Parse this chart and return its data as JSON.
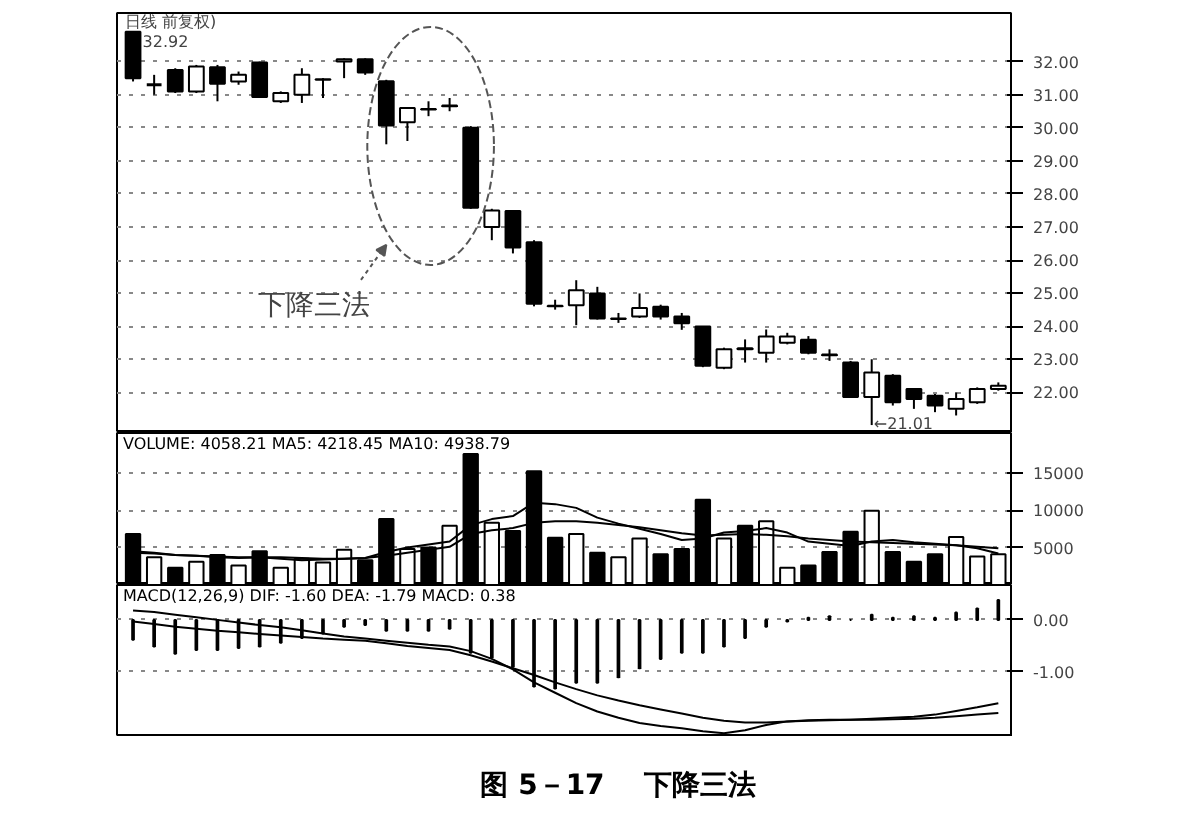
{
  "chart_data": [
    {
      "type": "candlestick",
      "categories": [
        null,
        null,
        null,
        null,
        null,
        null,
        null,
        null,
        null,
        null,
        null,
        null,
        null,
        null,
        null,
        null,
        null,
        null,
        null,
        null,
        null,
        null,
        null,
        null,
        null,
        null,
        null,
        null,
        null,
        null,
        null,
        null,
        null,
        null,
        null,
        null,
        null,
        null,
        null,
        null,
        null,
        null
      ],
      "ohlc": [
        [
          32.9,
          32.92,
          31.4,
          31.5
        ],
        [
          31.3,
          31.6,
          31.0,
          31.3
        ],
        [
          31.75,
          31.8,
          31.05,
          31.1
        ],
        [
          31.1,
          31.9,
          31.05,
          31.85
        ],
        [
          31.83,
          31.9,
          30.8,
          31.33
        ],
        [
          31.4,
          31.7,
          31.3,
          31.6
        ],
        [
          31.97,
          32.0,
          30.9,
          30.93
        ],
        [
          30.8,
          31.1,
          30.75,
          31.05
        ],
        [
          31.0,
          31.8,
          30.75,
          31.6
        ],
        [
          31.45,
          31.5,
          30.9,
          31.47
        ],
        [
          32.0,
          32.1,
          31.5,
          32.07
        ],
        [
          32.07,
          32.1,
          31.6,
          31.67
        ],
        [
          31.41,
          31.45,
          29.5,
          30.07
        ],
        [
          30.17,
          30.6,
          29.6,
          30.6
        ],
        [
          30.55,
          30.8,
          30.35,
          30.57
        ],
        [
          30.65,
          30.9,
          30.5,
          30.67
        ],
        [
          30.0,
          30.05,
          27.55,
          27.58
        ],
        [
          27.0,
          27.55,
          26.6,
          27.5
        ],
        [
          27.48,
          27.5,
          26.2,
          26.38
        ],
        [
          26.54,
          26.6,
          24.6,
          24.68
        ],
        [
          24.6,
          24.8,
          24.5,
          24.62
        ],
        [
          24.63,
          25.39,
          24.03,
          25.09
        ],
        [
          24.99,
          25.19,
          24.2,
          24.23
        ],
        [
          24.22,
          24.4,
          24.1,
          24.23
        ],
        [
          24.29,
          24.99,
          24.25,
          24.55
        ],
        [
          24.59,
          24.65,
          24.2,
          24.29
        ],
        [
          24.29,
          24.4,
          23.89,
          24.09
        ],
        [
          23.99,
          24.0,
          22.76,
          22.8
        ],
        [
          22.74,
          23.35,
          22.7,
          23.3
        ],
        [
          23.3,
          23.6,
          22.9,
          23.33
        ],
        [
          23.2,
          23.9,
          22.9,
          23.69
        ],
        [
          23.5,
          23.8,
          23.45,
          23.69
        ],
        [
          23.59,
          23.7,
          23.15,
          23.2
        ],
        [
          23.12,
          23.3,
          22.95,
          23.14
        ],
        [
          22.9,
          22.95,
          21.85,
          21.86
        ],
        [
          21.86,
          23.0,
          21.01,
          22.6
        ],
        [
          22.5,
          22.55,
          21.6,
          21.7
        ],
        [
          22.1,
          22.1,
          21.5,
          21.8
        ],
        [
          21.9,
          21.95,
          21.4,
          21.6
        ],
        [
          21.5,
          22.0,
          21.3,
          21.8
        ],
        [
          21.7,
          22.15,
          21.65,
          22.1
        ],
        [
          22.1,
          22.3,
          22.05,
          22.2
        ]
      ],
      "color": "#000000",
      "ylim": [
        20.77,
        33.47
      ],
      "yticks": [
        {
          "value": 22,
          "label": "22.00"
        },
        {
          "value": 23,
          "label": "23.00"
        },
        {
          "value": 24,
          "label": "24.00"
        },
        {
          "value": 25,
          "label": "25.00"
        },
        {
          "value": 26,
          "label": "26.00"
        },
        {
          "value": 27,
          "label": "27.00"
        },
        {
          "value": 28,
          "label": "28.00"
        },
        {
          "value": 29,
          "label": "29.00"
        },
        {
          "value": 30,
          "label": "30.00"
        },
        {
          "value": 31,
          "label": "31.00"
        },
        {
          "value": 32,
          "label": "32.00"
        }
      ],
      "grid": "y",
      "tick_labels": "y",
      "annotations": [
        "日线 前复权)",
        "32.92",
        "下降三法",
        "←21.01"
      ]
    },
    {
      "type": "bar",
      "title": "VOLUME: 4058.21 MA5: 4218.45 MA10: 4938.79",
      "categories": [
        null,
        null,
        null,
        null,
        null,
        null,
        null,
        null,
        null,
        null,
        null,
        null,
        null,
        null,
        null,
        null,
        null,
        null,
        null,
        null,
        null,
        null,
        null,
        null,
        null,
        null,
        null,
        null,
        null,
        null,
        null,
        null,
        null,
        null,
        null,
        null,
        null,
        null,
        null,
        null,
        null,
        null
      ],
      "series": [
        {
          "type": "bar",
          "color": "#000000",
          "values": [
            6800,
            3700,
            2300,
            3100,
            4000,
            2600,
            4500,
            2300,
            3500,
            3000,
            4700,
            3300,
            8800,
            4800,
            5000,
            7900,
            17500,
            8300,
            7200,
            15200,
            6300,
            6800,
            4300,
            3700,
            6200,
            4100,
            4800,
            11400,
            6200,
            7900,
            8500,
            2300,
            2600,
            4400,
            7100,
            9900,
            4400,
            3100,
            4100,
            6400,
            3800,
            4100
          ],
          "colors": [
            "#000000",
            "#ffffff",
            "#000000",
            "#ffffff",
            "#000000",
            "#ffffff",
            "#000000",
            "#ffffff",
            "#ffffff",
            "#ffffff",
            "#ffffff",
            "#000000",
            "#000000",
            "#ffffff",
            "#000000",
            "#ffffff",
            "#000000",
            "#ffffff",
            "#000000",
            "#000000",
            "#000000",
            "#ffffff",
            "#000000",
            "#ffffff",
            "#ffffff",
            "#000000",
            "#000000",
            "#000000",
            "#ffffff",
            "#000000",
            "#ffffff",
            "#ffffff",
            "#000000",
            "#000000",
            "#000000",
            "#ffffff",
            "#000000",
            "#000000",
            "#000000",
            "#ffffff",
            "#ffffff",
            "#ffffff"
          ]
        },
        {
          "type": "line",
          "color": "#000000",
          "values": [
            4500,
            4300,
            4000,
            3900,
            3700,
            3600,
            3700,
            3500,
            3300,
            3400,
            3500,
            3600,
            4400,
            5000,
            5400,
            5800,
            8000,
            8800,
            9200,
            11000,
            10800,
            10300,
            9000,
            8200,
            7500,
            6800,
            6000,
            6200,
            7000,
            7200,
            7600,
            7000,
            5800,
            5500,
            5200,
            5800,
            6000,
            5700,
            5500,
            5300,
            4900,
            4200
          ]
        },
        {
          "type": "line",
          "color": "#000000",
          "values": [
            4300,
            4200,
            4000,
            3900,
            3800,
            3700,
            3700,
            3700,
            3600,
            3500,
            3500,
            3600,
            3900,
            4300,
            4700,
            5100,
            6800,
            7300,
            7600,
            8300,
            8500,
            8500,
            8300,
            8000,
            7700,
            7300,
            6900,
            6600,
            6700,
            6800,
            6700,
            6500,
            6200,
            6000,
            5800,
            5700,
            5600,
            5500,
            5400,
            5300,
            5100,
            4900
          ]
        }
      ],
      "ylim": [
        0,
        20300
      ],
      "yticks": [
        5000,
        10000,
        15000
      ],
      "grid": "y",
      "tick_labels": "y"
    },
    {
      "type": "bar",
      "title": "MACD(12,26,9) DIF: -1.60 DEA: -1.79 MACD: 0.38",
      "categories": [
        null,
        null,
        null,
        null,
        null,
        null,
        null,
        null,
        null,
        null,
        null,
        null,
        null,
        null,
        null,
        null,
        null,
        null,
        null,
        null,
        null,
        null,
        null,
        null,
        null,
        null,
        null,
        null,
        null,
        null,
        null,
        null,
        null,
        null,
        null,
        null,
        null,
        null,
        null,
        null,
        null,
        null
      ],
      "series": [
        {
          "type": "bar",
          "color": "#000000",
          "values": [
            -0.38,
            -0.51,
            -0.65,
            -0.58,
            -0.58,
            -0.54,
            -0.51,
            -0.44,
            -0.35,
            -0.26,
            -0.13,
            -0.1,
            -0.21,
            -0.21,
            -0.21,
            -0.17,
            -0.63,
            -0.72,
            -0.9,
            -1.28,
            -1.32,
            -1.21,
            -1.21,
            -1.1,
            -0.93,
            -0.75,
            -0.63,
            -0.63,
            -0.51,
            -0.35,
            -0.13,
            -0.03,
            0.04,
            0.07,
            0.0,
            0.1,
            0.04,
            0.07,
            0.04,
            0.14,
            0.22,
            0.38
          ]
        },
        {
          "type": "line",
          "color": "#000000",
          "values": [
            0.18,
            0.15,
            0.1,
            0.05,
            0.0,
            -0.05,
            -0.1,
            -0.14,
            -0.2,
            -0.26,
            -0.32,
            -0.36,
            -0.4,
            -0.44,
            -0.48,
            -0.51,
            -0.6,
            -0.75,
            -0.95,
            -1.2,
            -1.4,
            -1.6,
            -1.76,
            -1.88,
            -1.98,
            -2.04,
            -2.08,
            -2.14,
            -2.18,
            -2.12,
            -2.02,
            -1.95,
            -1.93,
            -1.92,
            -1.92,
            -1.9,
            -1.88,
            -1.86,
            -1.82,
            -1.75,
            -1.68,
            -1.6
          ]
        },
        {
          "type": "line",
          "color": "#000000",
          "values": [
            -0.03,
            -0.08,
            -0.13,
            -0.17,
            -0.21,
            -0.24,
            -0.27,
            -0.3,
            -0.33,
            -0.36,
            -0.38,
            -0.4,
            -0.45,
            -0.5,
            -0.54,
            -0.58,
            -0.68,
            -0.8,
            -0.93,
            -1.06,
            -1.2,
            -1.33,
            -1.45,
            -1.55,
            -1.64,
            -1.72,
            -1.8,
            -1.88,
            -1.94,
            -1.97,
            -1.97,
            -1.95,
            -1.94,
            -1.93,
            -1.92,
            -1.92,
            -1.91,
            -1.9,
            -1.88,
            -1.85,
            -1.82,
            -1.79
          ]
        }
      ],
      "ylim": [
        -2.25,
        0.67
      ],
      "yticks": [
        {
          "value": 0,
          "label": "0.00"
        },
        {
          "value": -1,
          "label": "-1.00"
        }
      ],
      "grid": "y",
      "tick_labels": "y",
      "annotations": [
        "图 5－17    下降三法"
      ]
    }
  ]
}
